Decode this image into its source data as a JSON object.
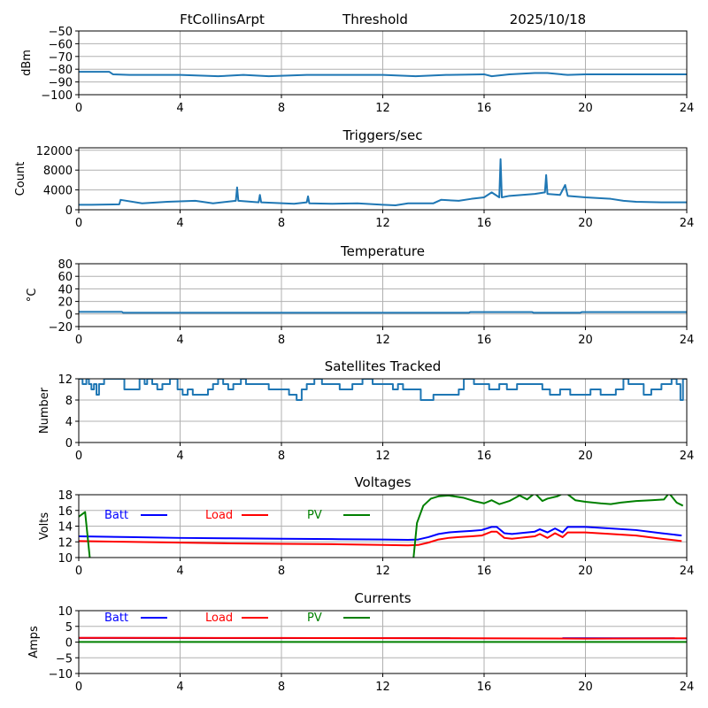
{
  "header": {
    "station": "FtCollinsArpt",
    "mode": "Threshold",
    "date": "2025/10/18"
  },
  "chart_data": [
    {
      "id": "threshold",
      "type": "line",
      "title": "",
      "xlabel": "",
      "ylabel": "dBm",
      "xlim": [
        0,
        24
      ],
      "ylim": [
        -100,
        -50
      ],
      "xticks": [
        0,
        4,
        8,
        12,
        16,
        20,
        24
      ],
      "yticks": [
        -100,
        -90,
        -80,
        -70,
        -60,
        -50
      ],
      "grid": true,
      "series": [
        {
          "name": "Threshold",
          "color": "#1f77b4",
          "x": [
            0,
            1.2,
            1.35,
            2,
            4,
            5.5,
            6.5,
            7.5,
            9,
            12,
            13.3,
            14.5,
            16,
            16.3,
            17,
            18,
            18.5,
            19.3,
            20,
            22,
            24
          ],
          "y": [
            -82,
            -82,
            -84,
            -84.5,
            -84.5,
            -85.5,
            -84.5,
            -85.5,
            -84.5,
            -84.5,
            -85.5,
            -84.5,
            -84,
            -85.5,
            -84,
            -83,
            -83,
            -84.5,
            -84,
            -84,
            -84
          ]
        }
      ]
    },
    {
      "id": "triggers",
      "type": "line",
      "title": "Triggers/sec",
      "xlabel": "",
      "ylabel": "Count",
      "xlim": [
        0,
        24
      ],
      "ylim": [
        0,
        12500
      ],
      "xticks": [
        0,
        4,
        8,
        12,
        16,
        20,
        24
      ],
      "yticks": [
        0,
        4000,
        8000,
        12000
      ],
      "grid": true,
      "series": [
        {
          "name": "Triggers",
          "color": "#1f77b4",
          "x": [
            0,
            0.5,
            1.6,
            1.65,
            2.5,
            3.5,
            4,
            4.6,
            5.3,
            6.2,
            6.25,
            6.3,
            7.1,
            7.15,
            7.2,
            8.5,
            9,
            9.05,
            9.1,
            10,
            11,
            12,
            12.5,
            13,
            14,
            14.3,
            15,
            15.5,
            16,
            16.3,
            16.6,
            16.65,
            16.7,
            17,
            17.5,
            18,
            18.4,
            18.45,
            18.5,
            19,
            19.2,
            19.3,
            20,
            21,
            21.5,
            22,
            23,
            24
          ],
          "y": [
            1000,
            1000,
            1100,
            2000,
            1300,
            1600,
            1700,
            1800,
            1300,
            1800,
            4500,
            1800,
            1500,
            3000,
            1500,
            1200,
            1500,
            2700,
            1300,
            1200,
            1300,
            1000,
            900,
            1300,
            1300,
            2000,
            1800,
            2200,
            2500,
            3500,
            2500,
            10200,
            2500,
            2800,
            3000,
            3200,
            3500,
            7000,
            3200,
            3000,
            5000,
            2800,
            2500,
            2200,
            1800,
            1600,
            1500,
            1500
          ]
        }
      ]
    },
    {
      "id": "temperature",
      "type": "line",
      "title": "Temperature",
      "xlabel": "",
      "ylabel": "°C",
      "xlim": [
        0,
        24
      ],
      "ylim": [
        -20,
        80
      ],
      "xticks": [
        0,
        4,
        8,
        12,
        16,
        20,
        24
      ],
      "yticks": [
        -20,
        0,
        20,
        40,
        60,
        80
      ],
      "grid": true,
      "series": [
        {
          "name": "Temperature",
          "color": "#1f77b4",
          "x": [
            0,
            1.7,
            1.75,
            15.4,
            15.45,
            17.9,
            17.95,
            19.8,
            19.85,
            24
          ],
          "y": [
            3.5,
            3.5,
            2,
            2,
            3,
            3,
            2,
            2,
            3,
            3
          ]
        }
      ]
    },
    {
      "id": "satellites",
      "type": "line",
      "title": "Satellites Tracked",
      "xlabel": "",
      "ylabel": "Number",
      "xlim": [
        0,
        24
      ],
      "ylim": [
        0,
        12
      ],
      "xticks": [
        0,
        4,
        8,
        12,
        16,
        20,
        24
      ],
      "yticks": [
        0,
        4,
        8,
        12
      ],
      "grid": true,
      "series": [
        {
          "name": "Satellites",
          "color": "#1f77b4",
          "step": true,
          "x": [
            0,
            0.15,
            0.3,
            0.4,
            0.5,
            0.6,
            0.7,
            0.8,
            1.0,
            1.8,
            2.4,
            2.6,
            2.7,
            2.9,
            3.1,
            3.3,
            3.6,
            3.9,
            4.1,
            4.3,
            4.5,
            4.8,
            5.1,
            5.3,
            5.5,
            5.7,
            5.9,
            6.1,
            6.4,
            6.6,
            7.0,
            7.5,
            8.0,
            8.3,
            8.6,
            8.8,
            9.0,
            9.3,
            9.6,
            9.9,
            10.3,
            10.8,
            11.2,
            11.6,
            12.0,
            12.4,
            12.6,
            12.8,
            13.5,
            14.0,
            14.5,
            15.0,
            15.2,
            15.6,
            16.2,
            16.6,
            16.9,
            17.3,
            17.9,
            18.3,
            18.6,
            19.0,
            19.4,
            19.8,
            20.2,
            20.6,
            21.2,
            21.5,
            21.7,
            21.9,
            22.3,
            22.6,
            23.0,
            23.4,
            23.6,
            23.75,
            23.85,
            24
          ],
          "y": [
            12,
            11,
            12,
            11,
            10,
            11,
            9,
            11,
            12,
            10,
            12,
            11,
            12,
            11,
            10,
            11,
            12,
            10,
            9,
            10,
            9,
            9,
            10,
            11,
            12,
            11,
            10,
            11,
            12,
            11,
            11,
            10,
            10,
            9,
            8,
            10,
            11,
            12,
            11,
            11,
            10,
            11,
            12,
            11,
            11,
            10,
            11,
            10,
            8,
            9,
            9,
            10,
            12,
            11,
            10,
            11,
            10,
            11,
            11,
            10,
            9,
            10,
            9,
            9,
            10,
            9,
            10,
            12,
            11,
            11,
            9,
            10,
            11,
            12,
            11,
            8,
            12,
            12
          ]
        }
      ]
    },
    {
      "id": "voltages",
      "type": "line",
      "title": "Voltages",
      "xlabel": "",
      "ylabel": "Volts",
      "xlim": [
        0,
        24
      ],
      "ylim": [
        10,
        18
      ],
      "xticks": [
        0,
        4,
        8,
        12,
        16,
        20,
        24
      ],
      "yticks": [
        10,
        12,
        14,
        16,
        18
      ],
      "grid": true,
      "legend": {
        "placement": "top-left",
        "entries": [
          {
            "label": "Batt",
            "color": "#0000ff"
          },
          {
            "label": "Load",
            "color": "#ff0000"
          },
          {
            "label": "PV",
            "color": "#008000"
          }
        ]
      },
      "series": [
        {
          "name": "Batt",
          "color": "#0000ff",
          "x": [
            0,
            2,
            4,
            6,
            8,
            10,
            12,
            13,
            13.4,
            13.8,
            14.2,
            14.6,
            15,
            15.5,
            15.9,
            16.3,
            16.5,
            16.8,
            17.1,
            17.4,
            17.7,
            18,
            18.2,
            18.5,
            18.8,
            19.1,
            19.3,
            19.6,
            20,
            21,
            22,
            23,
            23.8
          ],
          "y": [
            12.7,
            12.6,
            12.5,
            12.45,
            12.4,
            12.35,
            12.3,
            12.25,
            12.3,
            12.6,
            13.0,
            13.2,
            13.3,
            13.4,
            13.5,
            13.9,
            13.9,
            13.1,
            13.0,
            13.1,
            13.2,
            13.3,
            13.6,
            13.2,
            13.7,
            13.2,
            13.9,
            13.9,
            13.9,
            13.7,
            13.5,
            13.1,
            12.8
          ]
        },
        {
          "name": "Load",
          "color": "#ff0000",
          "x": [
            0,
            2,
            4,
            6,
            8,
            10,
            12,
            13,
            13.4,
            13.8,
            14.2,
            14.6,
            15,
            15.5,
            15.9,
            16.3,
            16.5,
            16.8,
            17.1,
            17.4,
            17.7,
            18,
            18.2,
            18.5,
            18.8,
            19.1,
            19.3,
            19.6,
            20,
            21,
            22,
            23,
            23.8
          ],
          "y": [
            12.1,
            12.0,
            11.9,
            11.8,
            11.75,
            11.7,
            11.6,
            11.55,
            11.6,
            11.9,
            12.3,
            12.5,
            12.6,
            12.7,
            12.8,
            13.3,
            13.3,
            12.5,
            12.4,
            12.5,
            12.6,
            12.7,
            13.0,
            12.5,
            13.1,
            12.6,
            13.2,
            13.2,
            13.2,
            13.0,
            12.8,
            12.4,
            12.1
          ]
        },
        {
          "name": "PV",
          "color": "#008000",
          "x": [
            0,
            0.25,
            0.45,
            13.2,
            13.35,
            13.6,
            13.9,
            14.2,
            14.6,
            15.2,
            15.6,
            16.0,
            16.3,
            16.6,
            17.0,
            17.4,
            17.7,
            18.0,
            18.3,
            18.5,
            18.9,
            19.2,
            19.6,
            20.0,
            20.6,
            21.0,
            21.4,
            22.0,
            22.6,
            23.1,
            23.3,
            23.6,
            23.85
          ],
          "y": [
            15.2,
            15.8,
            9.5,
            9.5,
            14.4,
            16.6,
            17.5,
            17.8,
            17.9,
            17.6,
            17.2,
            16.9,
            17.3,
            16.8,
            17.2,
            17.9,
            17.4,
            18.2,
            17.2,
            17.5,
            17.8,
            18.3,
            17.3,
            17.1,
            16.9,
            16.8,
            17.0,
            17.2,
            17.3,
            17.4,
            18.2,
            17.0,
            16.6
          ]
        }
      ]
    },
    {
      "id": "currents",
      "type": "line",
      "title": "Currents",
      "xlabel": "",
      "ylabel": "Amps",
      "xlim": [
        0,
        24
      ],
      "ylim": [
        -10,
        10
      ],
      "xticks": [
        0,
        4,
        8,
        12,
        16,
        20,
        24
      ],
      "yticks": [
        -10,
        -5,
        0,
        5,
        10
      ],
      "grid": true,
      "legend": {
        "placement": "top-left",
        "entries": [
          {
            "label": "Batt",
            "color": "#0000ff"
          },
          {
            "label": "Load",
            "color": "#ff0000"
          },
          {
            "label": "PV",
            "color": "#008000"
          }
        ]
      },
      "series": [
        {
          "name": "Batt",
          "color": "#0000ff",
          "x": [
            0,
            24
          ],
          "y": [
            1.3,
            1.2
          ]
        },
        {
          "name": "Load",
          "color": "#ff0000",
          "x": [
            0,
            8,
            16,
            20,
            24
          ],
          "y": [
            1.35,
            1.3,
            1.2,
            1.1,
            1.2
          ]
        },
        {
          "name": "PV",
          "color": "#008000",
          "x": [
            0,
            24
          ],
          "y": [
            0.05,
            0.05
          ]
        }
      ]
    }
  ]
}
